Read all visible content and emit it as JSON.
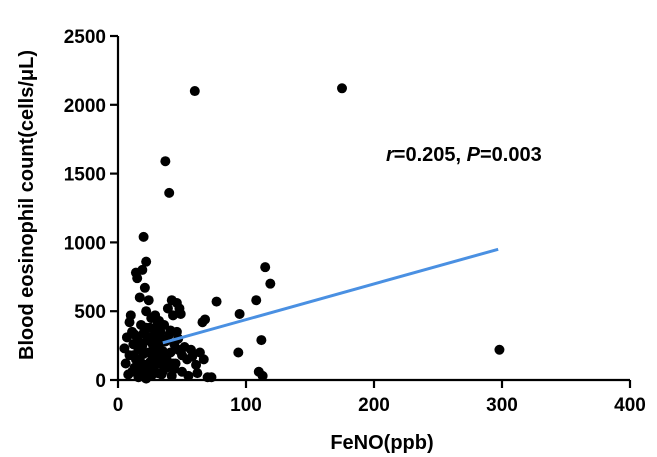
{
  "chart_data": {
    "type": "scatter",
    "xlabel": "FeNO(ppb)",
    "ylabel": "Blood eosinophil count(cells/μL)",
    "xlim": [
      0,
      400
    ],
    "ylim": [
      0,
      2500
    ],
    "xticks": [
      "0",
      "100",
      "200",
      "300",
      "400"
    ],
    "yticks": [
      "0",
      "500",
      "1000",
      "1500",
      "2000",
      "2500"
    ],
    "grid": false,
    "point_color": "#000000",
    "fit_line_color": "#4a90e2",
    "annotation": {
      "r_symbol": "r",
      "r_value": "=0.205, ",
      "p_symbol": "P",
      "p_value": "=0.003"
    },
    "fit_line": {
      "x": [
        35,
        297
      ],
      "y": [
        270,
        950
      ]
    },
    "points": [
      [
        6,
        120
      ],
      [
        8,
        40
      ],
      [
        9,
        420
      ],
      [
        10,
        470
      ],
      [
        11,
        350
      ],
      [
        12,
        260
      ],
      [
        12,
        180
      ],
      [
        13,
        90
      ],
      [
        14,
        780
      ],
      [
        15,
        740
      ],
      [
        15,
        300
      ],
      [
        16,
        220
      ],
      [
        16,
        20
      ],
      [
        17,
        600
      ],
      [
        17,
        150
      ],
      [
        18,
        400
      ],
      [
        18,
        60
      ],
      [
        19,
        800
      ],
      [
        19,
        250
      ],
      [
        20,
        1040
      ],
      [
        20,
        340
      ],
      [
        21,
        670
      ],
      [
        21,
        110
      ],
      [
        22,
        860
      ],
      [
        22,
        500
      ],
      [
        22,
        10
      ],
      [
        23,
        290
      ],
      [
        24,
        200
      ],
      [
        24,
        580
      ],
      [
        25,
        380
      ],
      [
        25,
        130
      ],
      [
        26,
        450
      ],
      [
        26,
        30
      ],
      [
        27,
        260
      ],
      [
        27,
        170
      ],
      [
        28,
        320
      ],
      [
        28,
        80
      ],
      [
        29,
        470
      ],
      [
        29,
        220
      ],
      [
        30,
        140
      ],
      [
        30,
        360
      ],
      [
        31,
        50
      ],
      [
        32,
        250
      ],
      [
        32,
        430
      ],
      [
        33,
        190
      ],
      [
        33,
        120
      ],
      [
        34,
        300
      ],
      [
        35,
        60
      ],
      [
        35,
        210
      ],
      [
        36,
        400
      ],
      [
        37,
        1590
      ],
      [
        37,
        280
      ],
      [
        38,
        150
      ],
      [
        38,
        90
      ],
      [
        39,
        520
      ],
      [
        40,
        1360
      ],
      [
        40,
        330
      ],
      [
        41,
        200
      ],
      [
        42,
        580
      ],
      [
        42,
        30
      ],
      [
        43,
        470
      ],
      [
        44,
        260
      ],
      [
        45,
        120
      ],
      [
        46,
        560
      ],
      [
        46,
        350
      ],
      [
        47,
        220
      ],
      [
        48,
        520
      ],
      [
        49,
        480
      ],
      [
        50,
        180
      ],
      [
        50,
        60
      ],
      [
        52,
        240
      ],
      [
        54,
        150
      ],
      [
        55,
        30
      ],
      [
        57,
        220
      ],
      [
        58,
        170
      ],
      [
        60,
        2100
      ],
      [
        61,
        110
      ],
      [
        62,
        50
      ],
      [
        64,
        200
      ],
      [
        66,
        420
      ],
      [
        67,
        150
      ],
      [
        68,
        440
      ],
      [
        70,
        20
      ],
      [
        73,
        20
      ],
      [
        77,
        570
      ],
      [
        94,
        200
      ],
      [
        95,
        480
      ],
      [
        108,
        580
      ],
      [
        110,
        60
      ],
      [
        112,
        290
      ],
      [
        113,
        30
      ],
      [
        115,
        820
      ],
      [
        119,
        700
      ],
      [
        175,
        2120
      ],
      [
        298,
        220
      ],
      [
        5,
        230
      ],
      [
        7,
        310
      ],
      [
        9,
        180
      ],
      [
        11,
        60
      ],
      [
        13,
        330
      ],
      [
        14,
        150
      ],
      [
        16,
        100
      ],
      [
        18,
        270
      ],
      [
        20,
        190
      ],
      [
        22,
        380
      ],
      [
        23,
        70
      ],
      [
        24,
        310
      ],
      [
        26,
        200
      ],
      [
        28,
        140
      ],
      [
        30,
        270
      ],
      [
        31,
        420
      ],
      [
        33,
        350
      ],
      [
        34,
        40
      ],
      [
        36,
        160
      ],
      [
        39,
        100
      ],
      [
        41,
        360
      ],
      [
        43,
        120
      ],
      [
        44,
        80
      ],
      [
        47,
        300
      ]
    ]
  }
}
